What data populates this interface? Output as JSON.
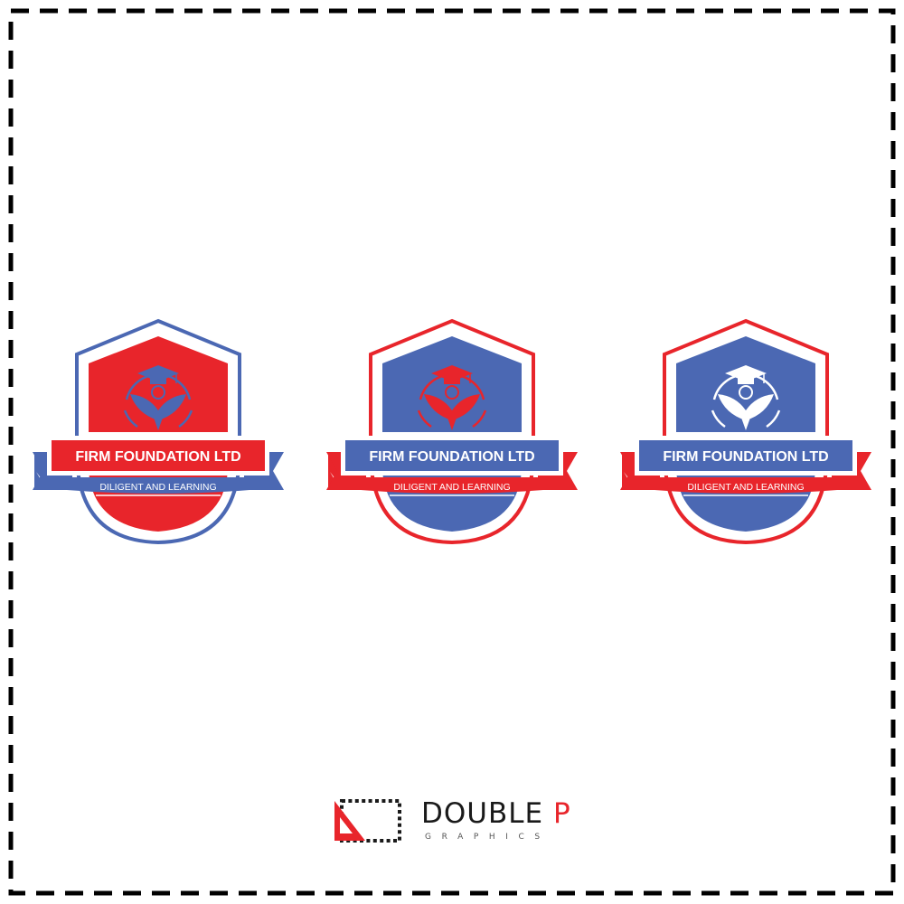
{
  "badges": [
    {
      "title": "FIRM FOUNDATION LTD",
      "tagline": "DILIGENT AND LEARNING",
      "variant": "red",
      "colors": {
        "outline": "#4b68b3",
        "fill": "#e8252b",
        "ribbon": "#4b68b3",
        "banner_text": "#e8252b",
        "emblem": "#4b68b3"
      }
    },
    {
      "title": "FIRM FOUNDATION LTD",
      "tagline": "DILIGENT AND LEARNING",
      "variant": "blue-red-emblem",
      "colors": {
        "outline": "#e8252b",
        "fill": "#4b68b3",
        "ribbon": "#e8252b",
        "banner_text": "#4b68b3",
        "emblem": "#e8252b"
      }
    },
    {
      "title": "FIRM FOUNDATION LTD",
      "tagline": "DILIGENT AND LEARNING",
      "variant": "blue-white-emblem",
      "colors": {
        "outline": "#e8252b",
        "fill": "#4b68b3",
        "ribbon": "#e8252b",
        "banner_text": "#4b68b3",
        "emblem": "#ffffff"
      }
    }
  ],
  "emblem_icon": "graduation-cap-book-icon",
  "footer": {
    "brand_first": "DOUBLE",
    "brand_last": "P",
    "brand_sub": "GRAPHICS",
    "icon": "double-p-logo-icon",
    "colors": {
      "accent": "#e8252b",
      "text": "#1a1a1a"
    }
  },
  "frame": {
    "style": "dashed",
    "color": "#000000"
  }
}
